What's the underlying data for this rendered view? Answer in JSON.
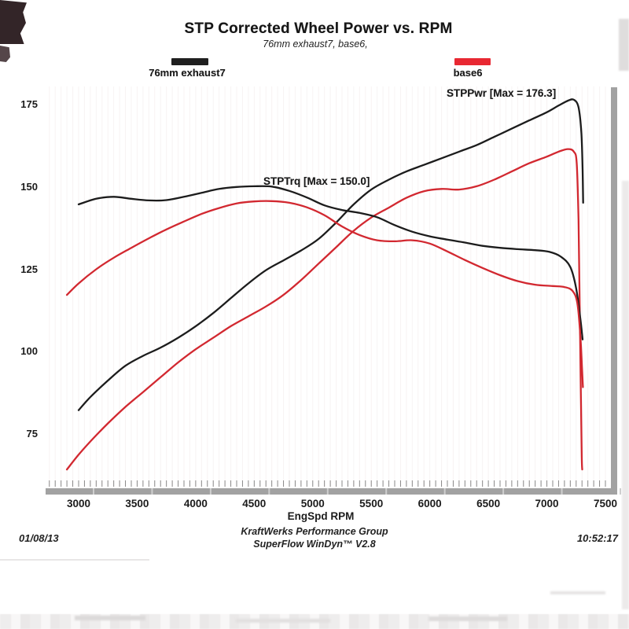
{
  "header": {
    "title": "STP Corrected Wheel Power vs. RPM",
    "subtitle": "76mm exhaust7, base6,"
  },
  "legend": [
    {
      "label": "76mm exhaust7",
      "color": "#1f1f1f"
    },
    {
      "label": "base6",
      "color": "#e82832"
    }
  ],
  "annotations": [
    {
      "text": "STPTrq [Max = 150.0]"
    },
    {
      "text": "STPPwr [Max = 176.3]"
    }
  ],
  "footer": {
    "date": "01/08/13",
    "line1": "KraftWerks Performance Group",
    "line2": "SuperFlow WinDyn™ V2.8",
    "time": "10:52:17"
  },
  "colors": {
    "black_curve": "#1c1c1c",
    "red_curve": "#d22830",
    "axis_gray": "#a2a2a2",
    "gridline": "#f2eaea",
    "minor_tick": "#6e6e6e"
  },
  "chart_data": {
    "type": "line",
    "title": "STP Corrected Wheel Power vs. RPM",
    "xlabel": "EngSpd  RPM",
    "ylabel": "",
    "x_ticks": [
      3000,
      3500,
      4000,
      4500,
      5000,
      5500,
      6000,
      6500,
      7000,
      7500
    ],
    "y_ticks": [
      75,
      100,
      125,
      150,
      175
    ],
    "x_range": [
      2718,
      7547
    ],
    "y_range": [
      58.3,
      180.3
    ],
    "grid": "faint vertical only",
    "legend_position": "top",
    "series": [
      {
        "name": "STPPwr — 76mm exhaust7",
        "color": "#1c1c1c",
        "labeled_max": 176.3,
        "points": [
          [
            3000,
            82
          ],
          [
            3100,
            86
          ],
          [
            3250,
            91
          ],
          [
            3400,
            95.5
          ],
          [
            3550,
            98.5
          ],
          [
            3700,
            101
          ],
          [
            3850,
            104
          ],
          [
            4000,
            107.5
          ],
          [
            4150,
            111.5
          ],
          [
            4300,
            116
          ],
          [
            4450,
            120.5
          ],
          [
            4600,
            124.5
          ],
          [
            4750,
            127.5
          ],
          [
            4900,
            130.5
          ],
          [
            5050,
            134
          ],
          [
            5200,
            139
          ],
          [
            5350,
            144.5
          ],
          [
            5500,
            149
          ],
          [
            5650,
            152
          ],
          [
            5800,
            154.5
          ],
          [
            5950,
            156.5
          ],
          [
            6100,
            158.5
          ],
          [
            6250,
            160.5
          ],
          [
            6400,
            162.5
          ],
          [
            6550,
            165
          ],
          [
            6700,
            167.5
          ],
          [
            6850,
            170
          ],
          [
            7000,
            172.5
          ],
          [
            7100,
            174.5
          ],
          [
            7180,
            176
          ],
          [
            7230,
            176.3
          ],
          [
            7270,
            174
          ],
          [
            7295,
            166
          ],
          [
            7305,
            155
          ],
          [
            7310,
            145
          ]
        ]
      },
      {
        "name": "STPPwr — base6",
        "color": "#d22830",
        "points": [
          [
            2900,
            64
          ],
          [
            3000,
            68.5
          ],
          [
            3100,
            72.5
          ],
          [
            3250,
            78
          ],
          [
            3400,
            83
          ],
          [
            3550,
            87.5
          ],
          [
            3700,
            92
          ],
          [
            3850,
            96.5
          ],
          [
            4000,
            100.5
          ],
          [
            4150,
            104
          ],
          [
            4300,
            107.5
          ],
          [
            4450,
            110.5
          ],
          [
            4600,
            113.5
          ],
          [
            4750,
            117
          ],
          [
            4900,
            121.5
          ],
          [
            5050,
            126.5
          ],
          [
            5200,
            131.5
          ],
          [
            5350,
            136.5
          ],
          [
            5500,
            140.5
          ],
          [
            5650,
            143.5
          ],
          [
            5800,
            146.5
          ],
          [
            5950,
            148.5
          ],
          [
            6100,
            149.2
          ],
          [
            6250,
            149
          ],
          [
            6400,
            150
          ],
          [
            6550,
            152
          ],
          [
            6700,
            154.5
          ],
          [
            6850,
            157
          ],
          [
            7000,
            159
          ],
          [
            7100,
            160.5
          ],
          [
            7180,
            161.3
          ],
          [
            7230,
            160.5
          ],
          [
            7255,
            157
          ],
          [
            7270,
            140
          ],
          [
            7280,
            115
          ],
          [
            7290,
            88
          ],
          [
            7298,
            68
          ],
          [
            7302,
            64
          ]
        ]
      },
      {
        "name": "STPTrq — 76mm exhaust7",
        "color": "#1c1c1c",
        "labeled_max": 150.0,
        "points": [
          [
            3000,
            144.5
          ],
          [
            3150,
            146.2
          ],
          [
            3300,
            146.8
          ],
          [
            3450,
            146.2
          ],
          [
            3600,
            145.7
          ],
          [
            3750,
            145.8
          ],
          [
            3900,
            146.8
          ],
          [
            4050,
            148
          ],
          [
            4200,
            149.2
          ],
          [
            4350,
            149.8
          ],
          [
            4500,
            150
          ],
          [
            4650,
            149.9
          ],
          [
            4800,
            148.6
          ],
          [
            4950,
            146.6
          ],
          [
            5100,
            144.2
          ],
          [
            5250,
            142.8
          ],
          [
            5400,
            141.9
          ],
          [
            5550,
            140.6
          ],
          [
            5700,
            138.2
          ],
          [
            5850,
            136.2
          ],
          [
            6000,
            134.8
          ],
          [
            6150,
            133.8
          ],
          [
            6300,
            132.9
          ],
          [
            6450,
            131.9
          ],
          [
            6600,
            131.3
          ],
          [
            6750,
            130.9
          ],
          [
            6900,
            130.6
          ],
          [
            7020,
            130.1
          ],
          [
            7120,
            128.6
          ],
          [
            7200,
            125.5
          ],
          [
            7250,
            119
          ],
          [
            7285,
            110
          ],
          [
            7305,
            103.5
          ]
        ]
      },
      {
        "name": "STPTrq — base6",
        "color": "#d22830",
        "points": [
          [
            2900,
            117
          ],
          [
            3000,
            120.5
          ],
          [
            3150,
            124.8
          ],
          [
            3300,
            128.3
          ],
          [
            3450,
            131.3
          ],
          [
            3600,
            134.2
          ],
          [
            3750,
            136.9
          ],
          [
            3900,
            139.3
          ],
          [
            4050,
            141.6
          ],
          [
            4200,
            143.4
          ],
          [
            4350,
            144.8
          ],
          [
            4500,
            145.4
          ],
          [
            4650,
            145.5
          ],
          [
            4800,
            145
          ],
          [
            4950,
            143.6
          ],
          [
            5100,
            141.2
          ],
          [
            5250,
            137.8
          ],
          [
            5400,
            135.2
          ],
          [
            5550,
            133.6
          ],
          [
            5700,
            133.3
          ],
          [
            5850,
            133.6
          ],
          [
            6000,
            132.6
          ],
          [
            6150,
            130.2
          ],
          [
            6300,
            127.6
          ],
          [
            6450,
            125.2
          ],
          [
            6600,
            123
          ],
          [
            6750,
            121.2
          ],
          [
            6900,
            120.1
          ],
          [
            7050,
            119.7
          ],
          [
            7150,
            119.4
          ],
          [
            7220,
            118.2
          ],
          [
            7260,
            114.5
          ],
          [
            7285,
            105
          ],
          [
            7300,
            95
          ],
          [
            7308,
            89
          ]
        ]
      }
    ]
  }
}
